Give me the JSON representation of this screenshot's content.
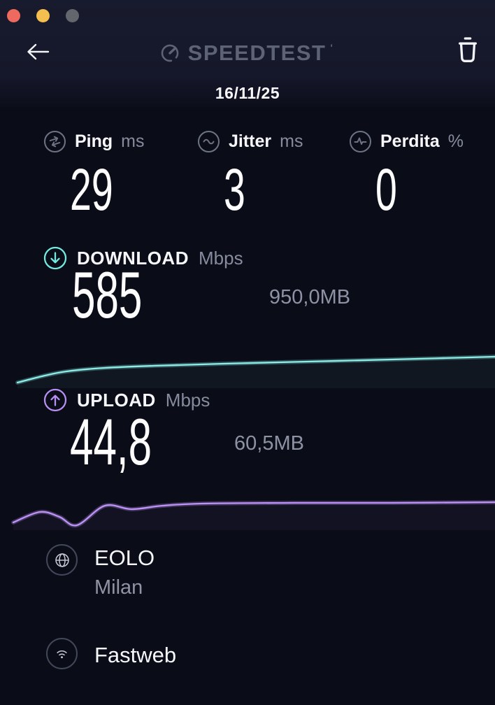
{
  "window": {
    "controls": [
      {
        "name": "close",
        "color": "#ee6a5f"
      },
      {
        "name": "minimize",
        "color": "#f5bf4f"
      },
      {
        "name": "zoom",
        "color": "#63666d"
      }
    ]
  },
  "header": {
    "logo_text": "SPEEDTEST",
    "trademark": "'",
    "date": "16/11/25"
  },
  "stats": [
    {
      "label": "Ping",
      "unit": "ms",
      "value": "29"
    },
    {
      "label": "Jitter",
      "unit": "ms",
      "value": "3"
    },
    {
      "label": "Perdita",
      "unit": "%",
      "value": "0"
    }
  ],
  "download": {
    "label": "DOWNLOAD",
    "unit": "Mbps",
    "value": "585",
    "transferred": "950,0MB",
    "accent": "#74e9e0"
  },
  "upload": {
    "label": "UPLOAD",
    "unit": "Mbps",
    "value": "44,8",
    "transferred": "60,5MB",
    "accent": "#b78ef2"
  },
  "connection": {
    "server_name": "EOLO",
    "server_location": "Milan",
    "isp_name": "Fastweb"
  },
  "chart_data": [
    {
      "type": "line",
      "name": "download-speed-sparkline",
      "color": "#8deee8",
      "unit": "Mbps",
      "final_value": 585,
      "points": [
        [
          25,
          50
        ],
        [
          60,
          41
        ],
        [
          95,
          34
        ],
        [
          150,
          29
        ],
        [
          220,
          26
        ],
        [
          320,
          23
        ],
        [
          440,
          20
        ],
        [
          560,
          17
        ],
        [
          708,
          13
        ]
      ]
    },
    {
      "type": "line",
      "name": "upload-speed-sparkline",
      "color": "#bd93f7",
      "unit": "Mbps",
      "final_value": 44.8,
      "points": [
        [
          19,
          41
        ],
        [
          57,
          26
        ],
        [
          85,
          33
        ],
        [
          110,
          45
        ],
        [
          150,
          17
        ],
        [
          188,
          22
        ],
        [
          233,
          17
        ],
        [
          290,
          14
        ],
        [
          420,
          13
        ],
        [
          560,
          13
        ],
        [
          708,
          12
        ]
      ]
    }
  ]
}
